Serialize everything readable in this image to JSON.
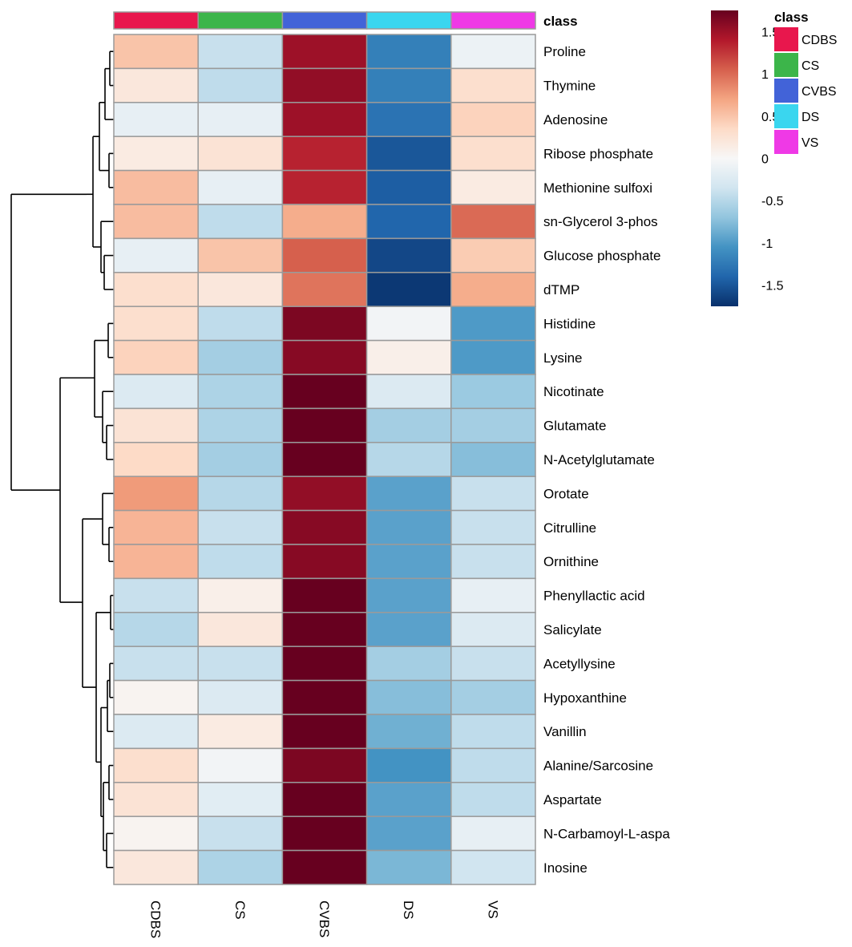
{
  "chart_data": {
    "type": "heatmap",
    "title": "",
    "class_annotation_label": "class",
    "columns": [
      "CDBS",
      "CS",
      "CVBS",
      "DS",
      "VS"
    ],
    "rows": [
      "Proline",
      "Thymine",
      "Adenosine",
      "Ribose phosphate",
      "Methionine sulfoxi",
      "sn-Glycerol 3-phos",
      "Glucose phosphate",
      "dTMP",
      "Histidine",
      "Lysine",
      "Nicotinate",
      "Glutamate",
      "N-Acetylglutamate",
      "Orotate",
      "Citrulline",
      "Ornithine",
      "Phenyllactic acid",
      "Salicylate",
      "Acetyllysine",
      "Hypoxanthine",
      "Vanillin",
      "Alanine/Sarcosine",
      "Aspartate",
      "N-Carbamoyl-L-aspa",
      "Inosine"
    ],
    "values": [
      [
        0.5,
        -0.4,
        1.5,
        -1.2,
        -0.1
      ],
      [
        0.2,
        -0.45,
        1.55,
        -1.2,
        0.3
      ],
      [
        -0.15,
        -0.15,
        1.5,
        -1.3,
        0.4
      ],
      [
        0.15,
        0.25,
        1.35,
        -1.5,
        0.3
      ],
      [
        0.55,
        -0.15,
        1.35,
        -1.45,
        0.15
      ],
      [
        0.55,
        -0.45,
        0.65,
        -1.4,
        1.0
      ],
      [
        -0.15,
        0.5,
        1.05,
        -1.6,
        0.45
      ],
      [
        0.3,
        0.2,
        0.95,
        -1.7,
        0.65
      ],
      [
        0.3,
        -0.45,
        1.65,
        -0.05,
        -1.0
      ],
      [
        0.4,
        -0.6,
        1.6,
        0.1,
        -1.0
      ],
      [
        -0.25,
        -0.55,
        1.95,
        -0.25,
        -0.65
      ],
      [
        0.25,
        -0.55,
        1.8,
        -0.6,
        -0.6
      ],
      [
        0.35,
        -0.6,
        1.8,
        -0.5,
        -0.75
      ],
      [
        0.75,
        -0.5,
        1.55,
        -0.95,
        -0.4
      ],
      [
        0.6,
        -0.4,
        1.6,
        -0.95,
        -0.4
      ],
      [
        0.6,
        -0.45,
        1.6,
        -0.95,
        -0.4
      ],
      [
        -0.4,
        0.1,
        1.8,
        -0.95,
        -0.15
      ],
      [
        -0.5,
        0.2,
        1.8,
        -0.95,
        -0.25
      ],
      [
        -0.4,
        -0.4,
        1.95,
        -0.6,
        -0.4
      ],
      [
        0.05,
        -0.25,
        1.9,
        -0.75,
        -0.6
      ],
      [
        -0.25,
        0.15,
        1.8,
        -0.85,
        -0.45
      ],
      [
        0.3,
        -0.05,
        1.65,
        -1.05,
        -0.45
      ],
      [
        0.25,
        -0.2,
        1.75,
        -0.95,
        -0.45
      ],
      [
        0.05,
        -0.4,
        1.8,
        -0.95,
        -0.15
      ],
      [
        0.2,
        -0.55,
        1.8,
        -0.8,
        -0.35
      ]
    ],
    "color_scale": {
      "ticks": [
        "1.5",
        "1",
        "0.5",
        "0",
        "-0.5",
        "-1",
        "-1.5"
      ],
      "tick_values": [
        1.5,
        1,
        0.5,
        0,
        -0.5,
        -1,
        -1.5
      ],
      "range": [
        -1.75,
        1.75
      ],
      "colors": [
        "#08306b",
        "#2166ac",
        "#4393c3",
        "#92c5de",
        "#d1e5f0",
        "#f7f7f7",
        "#fddbc7",
        "#f4a582",
        "#d6604d",
        "#b2182b",
        "#67001f"
      ]
    },
    "legend": {
      "title": "class",
      "items": [
        {
          "label": "CDBS",
          "color": "#e8174d"
        },
        {
          "label": "CS",
          "color": "#3cb54a"
        },
        {
          "label": "CVBS",
          "color": "#4263d8"
        },
        {
          "label": "DS",
          "color": "#3ad6ef"
        },
        {
          "label": "VS",
          "color": "#ef39e6"
        }
      ]
    }
  }
}
